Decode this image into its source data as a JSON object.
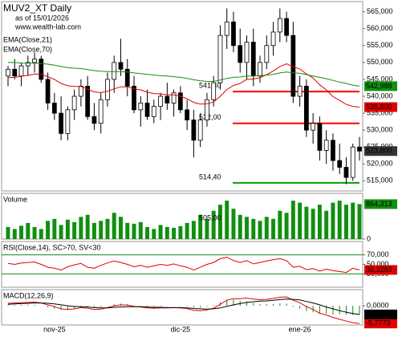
{
  "chart_data": [
    {
      "type": "candlestick",
      "title": "MUV2_XT Daily",
      "subtitle": "as of 15/01/2026",
      "annotation": "www.wealth-lab.com",
      "categories": [
        null,
        null,
        null,
        null,
        null,
        null,
        null,
        "nov-25",
        null,
        null,
        null,
        null,
        null,
        null,
        null,
        null,
        null,
        null,
        null,
        null,
        null,
        null,
        null,
        null,
        null,
        null,
        "dic-25",
        null,
        null,
        null,
        null,
        null,
        null,
        null,
        null,
        null,
        null,
        null,
        null,
        null,
        null,
        null,
        null,
        null,
        "ene-26",
        null,
        null,
        null,
        null,
        null,
        null,
        null,
        null,
        null
      ],
      "open": [
        546,
        548,
        546,
        549,
        550,
        551,
        545,
        538,
        535,
        529,
        536,
        540,
        543,
        534,
        532,
        539,
        545,
        550,
        548,
        543,
        536,
        538,
        534,
        537,
        540,
        538,
        541,
        536,
        533,
        527,
        533,
        539,
        544,
        558,
        562,
        555,
        550,
        556,
        546,
        550,
        555,
        559,
        563,
        558,
        540,
        543,
        530,
        532,
        524,
        527,
        521,
        519,
        516,
        525
      ],
      "high": [
        549,
        551,
        550,
        552,
        553,
        552,
        547,
        541,
        540,
        537,
        542,
        545,
        546,
        538,
        541,
        547,
        552,
        557,
        551,
        546,
        540,
        542,
        539,
        541,
        544,
        542,
        543,
        539,
        536,
        535,
        541,
        546,
        561,
        566,
        565,
        560,
        558,
        560,
        552,
        558,
        562,
        566,
        565,
        562,
        546,
        545,
        535,
        534,
        530,
        529,
        526,
        522,
        526,
        528
      ],
      "low": [
        543,
        545,
        543,
        546,
        547,
        544,
        536,
        533,
        527,
        527,
        533,
        537,
        533,
        530,
        529,
        537,
        541,
        546,
        540,
        535,
        531,
        533,
        532,
        533,
        536,
        534,
        535,
        530,
        522,
        525,
        531,
        537,
        542,
        554,
        553,
        547,
        545,
        543,
        544,
        548,
        552,
        556,
        556,
        538,
        537,
        528,
        526,
        521,
        520,
        518,
        517,
        514,
        515,
        521
      ],
      "close": [
        548,
        546,
        549,
        550,
        551,
        545,
        538,
        535,
        529,
        536,
        540,
        543,
        534,
        532,
        539,
        545,
        550,
        548,
        543,
        536,
        538,
        534,
        537,
        540,
        538,
        541,
        536,
        533,
        527,
        533,
        539,
        544,
        558,
        562,
        555,
        550,
        556,
        546,
        550,
        555,
        559,
        563,
        558,
        540,
        543,
        530,
        532,
        524,
        527,
        521,
        519,
        516,
        525,
        523.8
      ],
      "close_label": "523,800",
      "up_color": "#ffffff",
      "down_color": "#000000",
      "series": [
        {
          "name": "EMA(Close,21)",
          "color": "#e00000",
          "last_label": "536,800",
          "values": [
            545.5,
            545.6,
            545.9,
            546.2,
            546.6,
            546.5,
            545.8,
            545.0,
            543.8,
            543.1,
            542.9,
            542.9,
            542.1,
            541.3,
            541.1,
            541.5,
            542.2,
            542.8,
            542.8,
            542.2,
            541.9,
            541.2,
            540.8,
            540.7,
            540.4,
            540.4,
            540.0,
            539.3,
            538.2,
            537.7,
            537.8,
            538.3,
            540.0,
            542.0,
            543.2,
            543.8,
            545.0,
            545.1,
            545.5,
            546.4,
            547.5,
            548.8,
            549.6,
            548.7,
            548.1,
            546.6,
            545.4,
            543.4,
            541.9,
            539.9,
            538.8,
            537.6,
            537.0,
            536.8
          ]
        },
        {
          "name": "EMA(Close,70)",
          "color": "#109010",
          "last_label": "542,988",
          "values": [
            550,
            550,
            549.8,
            549.8,
            549.8,
            549.7,
            549.5,
            549.2,
            548.8,
            548.5,
            548.3,
            548.2,
            547.9,
            547.6,
            547.4,
            547.3,
            547.3,
            547.3,
            547.2,
            546.9,
            546.7,
            546.5,
            546.3,
            546.1,
            546.0,
            545.8,
            545.6,
            545.3,
            544.9,
            544.6,
            544.4,
            544.4,
            544.8,
            545.3,
            545.6,
            545.7,
            546.0,
            546.0,
            546.1,
            546.3,
            546.5,
            546.9,
            547.2,
            546.9,
            546.8,
            546.4,
            546.0,
            545.6,
            545.2,
            544.7,
            544.2,
            543.8,
            543.3,
            542.988
          ]
        }
      ],
      "levels": [
        {
          "value": 541.4,
          "label": "541,40",
          "color": "#ff0000"
        },
        {
          "value": 532,
          "label": "532,00",
          "color": "#ff0000"
        },
        {
          "value": 514.4,
          "label": "514,40",
          "color": "#00a000"
        }
      ],
      "ylim": [
        512,
        568
      ],
      "yticks": [
        {
          "value": 515,
          "label": "515,000"
        },
        {
          "value": 520,
          "label": "520,000"
        },
        {
          "value": 525,
          "label": "525,000"
        },
        {
          "value": 530,
          "label": "530,000"
        },
        {
          "value": 535,
          "label": "535,000"
        },
        {
          "value": 540,
          "label": "540,000"
        },
        {
          "value": 545,
          "label": "545,000"
        },
        {
          "value": 550,
          "label": "550,000"
        },
        {
          "value": 555,
          "label": "555,000"
        },
        {
          "value": 560,
          "label": "560,000"
        },
        {
          "value": 565,
          "label": "565,000"
        }
      ]
    },
    {
      "type": "bar",
      "title": "Volume",
      "color": "#109010",
      "annotation": "505,00",
      "last_label": "864,313",
      "values": [
        300,
        250,
        330,
        400,
        300,
        250,
        450,
        500,
        350,
        480,
        420,
        550,
        600,
        400,
        450,
        500,
        650,
        550,
        400,
        380,
        420,
        300,
        250,
        350,
        300,
        280,
        320,
        400,
        450,
        600,
        500,
        700,
        850,
        950,
        750,
        600,
        550,
        500,
        450,
        550,
        500,
        700,
        650,
        950,
        900,
        800,
        750,
        850,
        700,
        900,
        950,
        850,
        900,
        864.313
      ],
      "ylim": [
        0,
        1130
      ],
      "yticks": [
        0
      ]
    },
    {
      "type": "line",
      "title": "RSI(Close,14), SC>70, SV<30",
      "grid_color": "#109010",
      "series": [
        {
          "color": "#e00000",
          "last_label": "38,3283",
          "values": [
            52,
            50,
            53,
            54,
            55,
            50,
            44,
            42,
            38,
            45,
            49,
            52,
            44,
            42,
            48,
            53,
            57,
            54,
            50,
            45,
            48,
            44,
            47,
            50,
            48,
            51,
            47,
            44,
            38,
            44,
            50,
            54,
            62,
            65,
            58,
            54,
            58,
            51,
            54,
            57,
            60,
            62,
            58,
            44,
            46,
            39,
            41,
            36,
            40,
            37,
            35,
            33,
            42,
            38.3283
          ]
        }
      ],
      "ylim": [
        2,
        98
      ],
      "yticks": [
        {
          "value": 70,
          "label": "70,000"
        },
        {
          "value": 50,
          "label": "50,000"
        },
        {
          "value": 30,
          "label": "30,000"
        }
      ]
    },
    {
      "type": "line",
      "title": "MACD(12,26,9)",
      "histogram": {
        "color": "#109010",
        "values": [
          0.3,
          0.3,
          0.3,
          0.3,
          0.3,
          0,
          -0.5,
          -0.9,
          -1.3,
          -1.2,
          -0.8,
          -0.3,
          -0.4,
          -0.6,
          -0.4,
          0.1,
          0.5,
          0.7,
          0.5,
          0.1,
          -0.1,
          -0.3,
          -0.3,
          -0.2,
          -0.1,
          0,
          -0.1,
          -0.2,
          -0.6,
          -0.6,
          -0.2,
          0.2,
          1.2,
          2.0,
          2.0,
          1.6,
          1.4,
          0.9,
          0.5,
          0.5,
          0.6,
          0.8,
          0.7,
          -0.3,
          -0.9,
          -1.7,
          -2.1,
          -2.7,
          -2.6,
          -2.8,
          -2.8,
          -2.9,
          -3.0,
          -2.96
        ]
      },
      "series": [
        {
          "color": "#e00000",
          "last_label": "-5,7773",
          "values": [
            0.8,
            0.9,
            1.0,
            1.1,
            1.2,
            0.9,
            0.3,
            -0.3,
            -1.0,
            -1.2,
            -1.0,
            -0.6,
            -0.8,
            -1.2,
            -1.1,
            -0.6,
            0.0,
            0.3,
            0.2,
            -0.2,
            -0.4,
            -0.7,
            -0.8,
            -0.7,
            -0.7,
            -0.6,
            -0.7,
            -0.9,
            -1.5,
            -1.6,
            -1.3,
            -0.8,
            0.5,
            1.8,
            2.3,
            2.3,
            2.5,
            2.2,
            2.0,
            2.1,
            2.4,
            2.8,
            2.9,
            1.8,
            1.0,
            -0.3,
            -1.2,
            -2.4,
            -3.0,
            -3.8,
            -4.4,
            -5.0,
            -5.5,
            -5.7773
          ]
        },
        {
          "color": "#000000",
          "last_label": "-2,8169",
          "values": [
            0.5,
            0.6,
            0.7,
            0.8,
            0.9,
            0.9,
            0.8,
            0.6,
            0.3,
            0.0,
            -0.2,
            -0.3,
            -0.4,
            -0.6,
            -0.7,
            -0.7,
            -0.5,
            -0.4,
            -0.3,
            -0.3,
            -0.3,
            -0.4,
            -0.5,
            -0.5,
            -0.6,
            -0.6,
            -0.6,
            -0.7,
            -0.9,
            -1.0,
            -1.1,
            -1.0,
            -0.7,
            -0.2,
            0.3,
            0.7,
            1.1,
            1.3,
            1.5,
            1.6,
            1.8,
            2.0,
            2.2,
            2.1,
            1.9,
            1.4,
            0.9,
            0.3,
            -0.4,
            -1.0,
            -1.6,
            -2.1,
            -2.5,
            -2.8169
          ]
        }
      ],
      "ylim": [
        -6.25,
        5.25
      ],
      "yticks": [
        {
          "value": 0,
          "label": "0,0000"
        }
      ]
    }
  ]
}
